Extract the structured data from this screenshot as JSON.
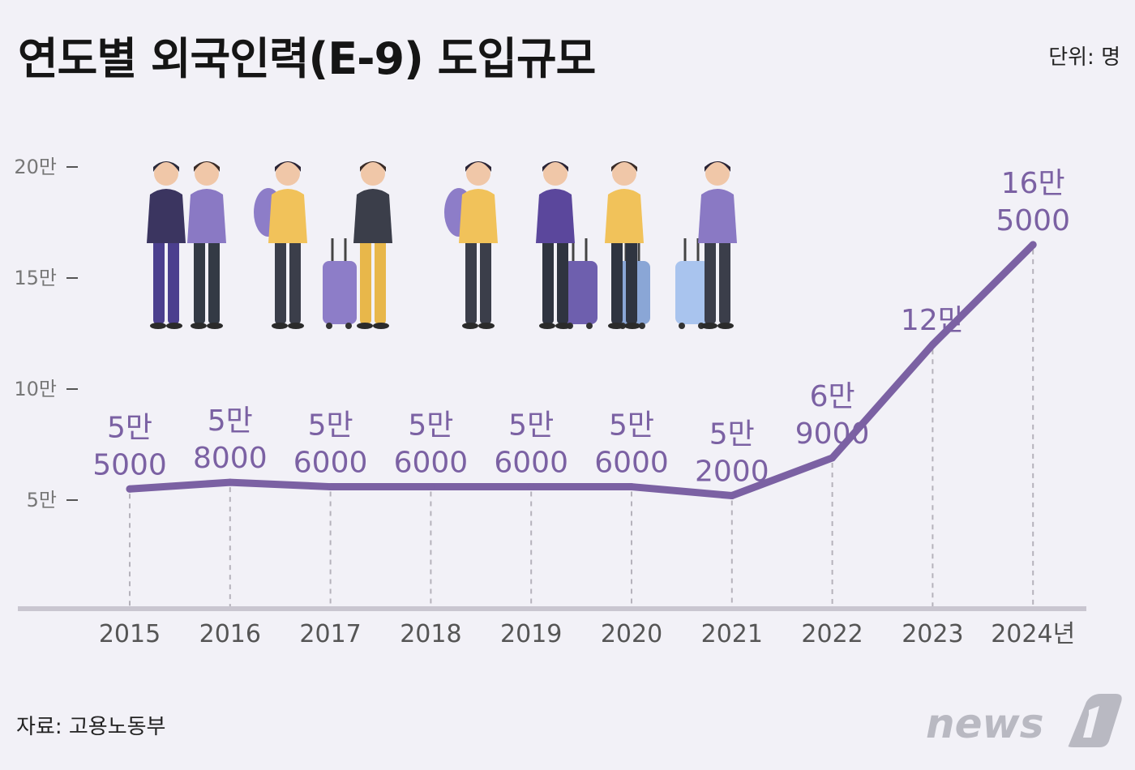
{
  "title": "연도별 외국인력(E-9) 도입규모",
  "unit_text": "단위: 명",
  "source_text": "자료: 고용노동부",
  "logo_text": "news1",
  "colors": {
    "line": "#7b61a3",
    "label": "#7b61a3",
    "background": "#f2f1f7",
    "baseline": "#c9c6d0",
    "guide": "#b5b2bb"
  },
  "chart_data": {
    "type": "line",
    "title": "연도별 외국인력(E-9) 도입규모",
    "xlabel": "",
    "ylabel": "",
    "categories": [
      "2015",
      "2016",
      "2017",
      "2018",
      "2019",
      "2020",
      "2021",
      "2022",
      "2023",
      "2024년"
    ],
    "values": [
      55000,
      58000,
      56000,
      56000,
      56000,
      56000,
      52000,
      69000,
      120000,
      165000
    ],
    "value_labels": [
      [
        "5만",
        "5000"
      ],
      [
        "5만",
        "8000"
      ],
      [
        "5만",
        "6000"
      ],
      [
        "5만",
        "6000"
      ],
      [
        "5만",
        "6000"
      ],
      [
        "5만",
        "6000"
      ],
      [
        "5만",
        "2000"
      ],
      [
        "6만",
        "9000"
      ],
      [
        "12만"
      ],
      [
        "16만",
        "5000"
      ]
    ],
    "yticks": [
      {
        "value": 50000,
        "label": "5만"
      },
      {
        "value": 100000,
        "label": "10만"
      },
      {
        "value": 150000,
        "label": "15만"
      },
      {
        "value": 200000,
        "label": "20만"
      }
    ],
    "ylim": [
      0,
      200000
    ],
    "grid": false,
    "legend": "none"
  }
}
